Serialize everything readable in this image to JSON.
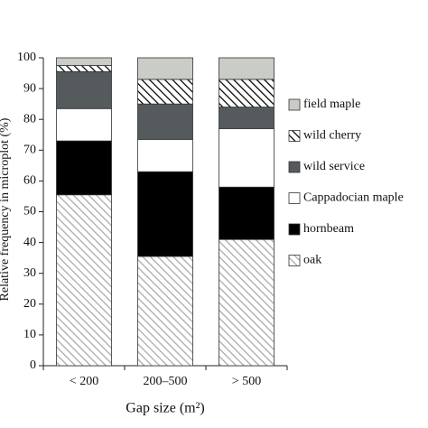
{
  "chart_data": {
    "type": "stacked_bar",
    "xlabel": "Gap size (m²)",
    "ylabel": "Relative frequency in microplot (%)",
    "categories": [
      "< 200",
      "200–500",
      "> 500"
    ],
    "series": [
      {
        "name": "oak",
        "color": "#a8a8a8",
        "hatch": true,
        "values": [
          55.5,
          35.5,
          41
        ]
      },
      {
        "name": "hornbeam",
        "color": "#000000",
        "values": [
          17.5,
          27.5,
          17
        ]
      },
      {
        "name": "Cappadocian maple",
        "color": "#ffffff",
        "values": [
          10.5,
          10.5,
          19
        ]
      },
      {
        "name": "wild service",
        "color": "#555a5c",
        "values": [
          12,
          11.5,
          7
        ]
      },
      {
        "name": "wild cherry",
        "color": "#000000",
        "hatch": true,
        "values": [
          2,
          8,
          9
        ]
      },
      {
        "name": "field maple",
        "color": "#c9ccc7",
        "values": [
          2.5,
          7,
          7
        ]
      }
    ],
    "ylim": [
      0,
      100
    ],
    "yticks": [
      0,
      10,
      20,
      30,
      40,
      50,
      60,
      70,
      80,
      90,
      100
    ]
  }
}
